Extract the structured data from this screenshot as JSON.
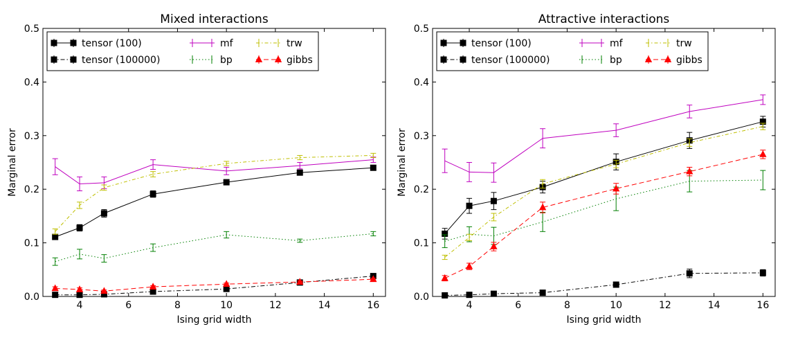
{
  "chart_data": [
    {
      "type": "line",
      "title": "Mixed interactions",
      "xlabel": "Ising grid width",
      "ylabel": "Marginal error",
      "xlim": [
        2.5,
        16.5
      ],
      "ylim": [
        0,
        0.5
      ],
      "xticks": [
        4,
        6,
        8,
        10,
        12,
        14,
        16
      ],
      "yticks": [
        0.0,
        0.1,
        0.2,
        0.3,
        0.4,
        0.5
      ],
      "ytick_labels": [
        "0.0",
        "0.1",
        "0.2",
        "0.3",
        "0.4",
        "0.5"
      ],
      "grid": false,
      "legend_position": "top-left",
      "series": [
        {
          "name": "tensor (100)",
          "color": "#000000",
          "dash": "",
          "marker": "square",
          "x": [
            3,
            4,
            5,
            7,
            10,
            13,
            16
          ],
          "y": [
            0.111,
            0.128,
            0.155,
            0.191,
            0.213,
            0.231,
            0.24
          ],
          "err": [
            0.005,
            0.006,
            0.007,
            0.006,
            0.005,
            0.004,
            0.004
          ]
        },
        {
          "name": "tensor (100000)",
          "color": "#000000",
          "dash": "6,3,1.5,3",
          "marker": "square",
          "x": [
            3,
            4,
            5,
            7,
            10,
            13,
            16
          ],
          "y": [
            0.003,
            0.003,
            0.004,
            0.009,
            0.014,
            0.026,
            0.038
          ],
          "err": [
            0.001,
            0.001,
            0.001,
            0.002,
            0.003,
            0.003,
            0.004
          ]
        },
        {
          "name": "mf",
          "color": "#bf00bf",
          "dash": "",
          "marker": "none",
          "x": [
            3,
            4,
            5,
            7,
            10,
            13,
            16
          ],
          "y": [
            0.242,
            0.21,
            0.212,
            0.246,
            0.234,
            0.244,
            0.255
          ],
          "err": [
            0.015,
            0.013,
            0.011,
            0.009,
            0.007,
            0.006,
            0.005
          ]
        },
        {
          "name": "bp",
          "color": "#007f00",
          "dash": "1.5,3",
          "marker": "none",
          "x": [
            3,
            4,
            5,
            7,
            10,
            13,
            16
          ],
          "y": [
            0.065,
            0.079,
            0.071,
            0.091,
            0.115,
            0.104,
            0.117
          ],
          "err": [
            0.007,
            0.009,
            0.007,
            0.007,
            0.006,
            0.003,
            0.004
          ]
        },
        {
          "name": "trw",
          "color": "#bfbf00",
          "dash": "5,3,1.5,3",
          "marker": "none",
          "x": [
            3,
            4,
            5,
            7,
            10,
            13,
            16
          ],
          "y": [
            0.121,
            0.17,
            0.203,
            0.228,
            0.248,
            0.259,
            0.263
          ],
          "err": [
            0.005,
            0.006,
            0.005,
            0.005,
            0.004,
            0.004,
            0.004
          ]
        },
        {
          "name": "gibbs",
          "color": "#ff0000",
          "dash": "7,4",
          "marker": "triangle",
          "x": [
            3,
            4,
            5,
            7,
            10,
            13,
            16
          ],
          "y": [
            0.015,
            0.013,
            0.01,
            0.018,
            0.023,
            0.027,
            0.032
          ],
          "err": [
            0.003,
            0.003,
            0.002,
            0.002,
            0.002,
            0.002,
            0.002
          ]
        }
      ]
    },
    {
      "type": "line",
      "title": "Attractive interactions",
      "xlabel": "Ising grid width",
      "ylabel": "Marginal error",
      "xlim": [
        2.5,
        16.5
      ],
      "ylim": [
        0,
        0.5
      ],
      "xticks": [
        4,
        6,
        8,
        10,
        12,
        14,
        16
      ],
      "yticks": [
        0.0,
        0.1,
        0.2,
        0.3,
        0.4,
        0.5
      ],
      "ytick_labels": [
        "0.0",
        "0.1",
        "0.2",
        "0.3",
        "0.4",
        "0.5"
      ],
      "grid": false,
      "legend_position": "top-left",
      "series": [
        {
          "name": "tensor (100)",
          "color": "#000000",
          "dash": "",
          "marker": "square",
          "x": [
            3,
            4,
            5,
            7,
            10,
            13,
            16
          ],
          "y": [
            0.117,
            0.169,
            0.178,
            0.204,
            0.251,
            0.291,
            0.326
          ],
          "err": [
            0.01,
            0.014,
            0.016,
            0.011,
            0.015,
            0.015,
            0.01
          ]
        },
        {
          "name": "tensor (100000)",
          "color": "#000000",
          "dash": "6,3,1.5,3",
          "marker": "square",
          "x": [
            3,
            4,
            5,
            7,
            10,
            13,
            16
          ],
          "y": [
            0.002,
            0.003,
            0.005,
            0.007,
            0.022,
            0.043,
            0.044
          ],
          "err": [
            0.001,
            0.001,
            0.002,
            0.002,
            0.003,
            0.008,
            0.006
          ]
        },
        {
          "name": "mf",
          "color": "#bf00bf",
          "dash": "",
          "marker": "none",
          "x": [
            3,
            4,
            5,
            7,
            10,
            13,
            16
          ],
          "y": [
            0.253,
            0.232,
            0.231,
            0.295,
            0.31,
            0.345,
            0.367
          ],
          "err": [
            0.022,
            0.018,
            0.018,
            0.018,
            0.012,
            0.012,
            0.009
          ]
        },
        {
          "name": "bp",
          "color": "#007f00",
          "dash": "1.5,3",
          "marker": "none",
          "x": [
            3,
            4,
            5,
            7,
            10,
            13,
            16
          ],
          "y": [
            0.103,
            0.116,
            0.113,
            0.139,
            0.182,
            0.215,
            0.217
          ],
          "err": [
            0.012,
            0.014,
            0.016,
            0.018,
            0.022,
            0.02,
            0.018
          ]
        },
        {
          "name": "trw",
          "color": "#bfbf00",
          "dash": "5,3,1.5,3",
          "marker": "none",
          "x": [
            3,
            4,
            5,
            7,
            10,
            13,
            16
          ],
          "y": [
            0.073,
            0.11,
            0.148,
            0.21,
            0.247,
            0.287,
            0.317
          ],
          "err": [
            0.004,
            0.006,
            0.007,
            0.008,
            0.007,
            0.007,
            0.006
          ]
        },
        {
          "name": "gibbs",
          "color": "#ff0000",
          "dash": "7,4",
          "marker": "triangle",
          "x": [
            3,
            4,
            5,
            7,
            10,
            13,
            16
          ],
          "y": [
            0.034,
            0.056,
            0.093,
            0.166,
            0.201,
            0.233,
            0.265
          ],
          "err": [
            0.005,
            0.006,
            0.008,
            0.01,
            0.01,
            0.008,
            0.008
          ]
        }
      ]
    }
  ]
}
